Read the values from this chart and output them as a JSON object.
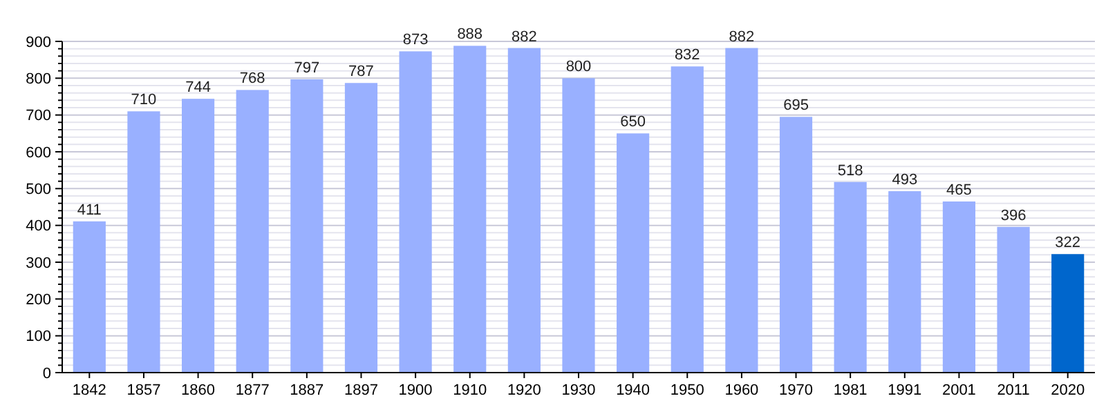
{
  "chart_data": {
    "type": "bar",
    "categories": [
      "1842",
      "1857",
      "1860",
      "1877",
      "1887",
      "1897",
      "1900",
      "1910",
      "1920",
      "1930",
      "1940",
      "1950",
      "1960",
      "1970",
      "1981",
      "1991",
      "2001",
      "2011",
      "2020"
    ],
    "values": [
      411,
      710,
      744,
      768,
      797,
      787,
      873,
      888,
      882,
      800,
      650,
      832,
      882,
      695,
      518,
      493,
      465,
      396,
      322
    ],
    "colors": [
      "#99b0ff",
      "#99b0ff",
      "#99b0ff",
      "#99b0ff",
      "#99b0ff",
      "#99b0ff",
      "#99b0ff",
      "#99b0ff",
      "#99b0ff",
      "#99b0ff",
      "#99b0ff",
      "#99b0ff",
      "#99b0ff",
      "#99b0ff",
      "#99b0ff",
      "#99b0ff",
      "#99b0ff",
      "#99b0ff",
      "#0066cc"
    ],
    "ylim": [
      0,
      900
    ],
    "yticks": [
      0,
      {
        "value": 20,
        "label": null
      },
      {
        "value": 40,
        "label": null
      },
      {
        "value": 60,
        "label": null
      },
      {
        "value": 80,
        "label": null
      },
      100,
      {
        "value": 120,
        "label": null
      },
      {
        "value": 140,
        "label": null
      },
      {
        "value": 160,
        "label": null
      },
      {
        "value": 180,
        "label": null
      },
      200,
      {
        "value": 220,
        "label": null
      },
      {
        "value": 240,
        "label": null
      },
      {
        "value": 260,
        "label": null
      },
      {
        "value": 280,
        "label": null
      },
      300,
      {
        "value": 320,
        "label": null
      },
      {
        "value": 340,
        "label": null
      },
      {
        "value": 360,
        "label": null
      },
      {
        "value": 380,
        "label": null
      },
      400,
      {
        "value": 420,
        "label": null
      },
      {
        "value": 440,
        "label": null
      },
      {
        "value": 460,
        "label": null
      },
      {
        "value": 480,
        "label": null
      },
      500,
      {
        "value": 520,
        "label": null
      },
      {
        "value": 540,
        "label": null
      },
      {
        "value": 560,
        "label": null
      },
      {
        "value": 580,
        "label": null
      },
      600,
      {
        "value": 620,
        "label": null
      },
      {
        "value": 640,
        "label": null
      },
      {
        "value": 660,
        "label": null
      },
      {
        "value": 680,
        "label": null
      },
      700,
      {
        "value": 720,
        "label": null
      },
      {
        "value": 740,
        "label": null
      },
      {
        "value": 760,
        "label": null
      },
      {
        "value": 780,
        "label": null
      },
      800,
      {
        "value": 820,
        "label": null
      },
      {
        "value": 840,
        "label": null
      },
      {
        "value": 860,
        "label": null
      },
      {
        "value": 880,
        "label": null
      },
      900
    ],
    "grid": true,
    "data_labels": true
  }
}
